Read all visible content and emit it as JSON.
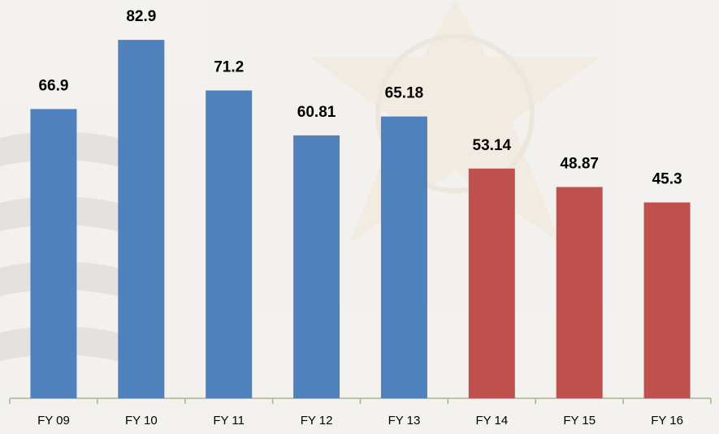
{
  "chart_data": {
    "type": "bar",
    "categories": [
      "FY 09",
      "FY 10",
      "FY 11",
      "FY 12",
      "FY 13",
      "FY 14",
      "FY 15",
      "FY 16"
    ],
    "values": [
      66.9,
      82.9,
      71.2,
      60.81,
      65.18,
      53.14,
      48.87,
      45.3
    ],
    "colors": [
      "#4f81bd",
      "#4f81bd",
      "#4f81bd",
      "#4f81bd",
      "#4f81bd",
      "#c0504d",
      "#c0504d",
      "#c0504d"
    ]
  }
}
